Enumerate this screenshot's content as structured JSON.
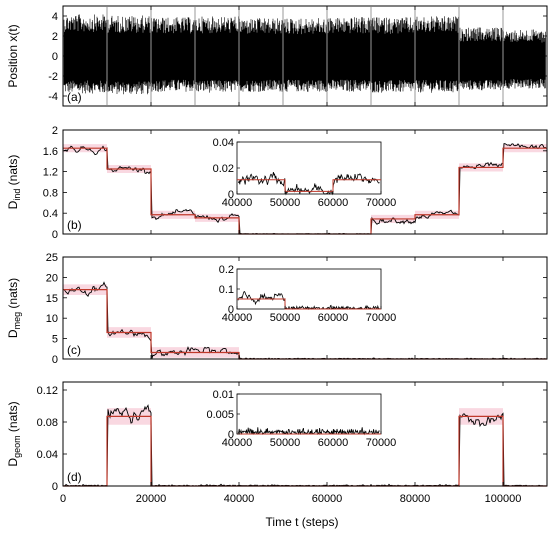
{
  "colors": {
    "trace": "#000000",
    "step_fit": "#c0392b",
    "band": "#f7c8d4",
    "divider": "#9a9a9a",
    "frame": "#000000"
  },
  "shared_x": {
    "label": "Time t (steps)",
    "range": [
      0,
      110000
    ],
    "ticks": [
      0,
      20000,
      40000,
      60000,
      80000,
      100000
    ],
    "tick_labels": [
      "0",
      "20000",
      "40000",
      "60000",
      "80000",
      "100000"
    ]
  },
  "chart_data": [
    {
      "type": "line",
      "panel": "(a)",
      "ylabel": "Position x(t)",
      "ylim": [
        -5,
        5
      ],
      "y_ticks": [
        -4,
        -2,
        0,
        2,
        4
      ],
      "y_tick_labels": [
        "-4",
        "-2",
        "0",
        "2",
        "4"
      ],
      "description_of_series": "dense stochastic trajectory; amplitude envelope per segment",
      "segment_boundaries": [
        10000,
        20000,
        30000,
        40000,
        50000,
        60000,
        70000,
        80000,
        90000,
        100000
      ],
      "envelope": [
        {
          "x": [
            0,
            10000
          ],
          "ymin": -4.2,
          "ymax": 4.6
        },
        {
          "x": [
            10000,
            20000
          ],
          "ymin": -4.3,
          "ymax": 4.5
        },
        {
          "x": [
            20000,
            30000
          ],
          "ymin": -4.0,
          "ymax": 4.3
        },
        {
          "x": [
            30000,
            40000
          ],
          "ymin": -4.1,
          "ymax": 4.4
        },
        {
          "x": [
            40000,
            50000
          ],
          "ymin": -4.0,
          "ymax": 4.2
        },
        {
          "x": [
            50000,
            60000
          ],
          "ymin": -4.0,
          "ymax": 4.2
        },
        {
          "x": [
            60000,
            70000
          ],
          "ymin": -4.0,
          "ymax": 4.3
        },
        {
          "x": [
            70000,
            80000
          ],
          "ymin": -4.1,
          "ymax": 4.3
        },
        {
          "x": [
            80000,
            90000
          ],
          "ymin": -4.1,
          "ymax": 4.4
        },
        {
          "x": [
            90000,
            100000
          ],
          "ymin": -3.8,
          "ymax": 3.2
        },
        {
          "x": [
            100000,
            110000
          ],
          "ymin": -3.6,
          "ymax": 3.0
        }
      ]
    },
    {
      "type": "line",
      "panel": "(b)",
      "ylabel_main": "D",
      "ylabel_sub": "ind",
      "ylabel_unit": " (nats)",
      "ylim": [
        0,
        2
      ],
      "y_ticks": [
        0,
        0.4,
        0.8,
        1.2,
        1.6,
        2
      ],
      "y_tick_labels": [
        "0",
        "0.4",
        "0.8",
        "1.2",
        "1.6",
        "2"
      ],
      "step_fit": [
        {
          "x": [
            0,
            10000
          ],
          "y": 1.65
        },
        {
          "x": [
            10000,
            20000
          ],
          "y": 1.25
        },
        {
          "x": [
            20000,
            30000
          ],
          "y": 0.37
        },
        {
          "x": [
            30000,
            40000
          ],
          "y": 0.31
        },
        {
          "x": [
            40000,
            70000
          ],
          "y": 0.0
        },
        {
          "x": [
            70000,
            80000
          ],
          "y": 0.29
        },
        {
          "x": [
            80000,
            90000
          ],
          "y": 0.37
        },
        {
          "x": [
            90000,
            100000
          ],
          "y": 1.28
        },
        {
          "x": [
            100000,
            110000
          ],
          "y": 1.65
        }
      ],
      "noise": 0.06,
      "inset": {
        "xlim": [
          40000,
          70000
        ],
        "ylim": [
          0,
          0.04
        ],
        "x_ticks": [
          40000,
          50000,
          60000,
          70000
        ],
        "x_tick_labels": [
          "40000",
          "50000",
          "60000",
          "70000"
        ],
        "y_ticks": [
          0,
          0.02,
          0.04
        ],
        "y_tick_labels": [
          "0",
          "0.02",
          "0.04"
        ],
        "step_fit": [
          {
            "x": [
              40000,
              50000
            ],
            "y": 0.011
          },
          {
            "x": [
              50000,
              60000
            ],
            "y": 0.002
          },
          {
            "x": [
              60000,
              70000
            ],
            "y": 0.011
          }
        ]
      }
    },
    {
      "type": "line",
      "panel": "(c)",
      "ylabel_main": "D",
      "ylabel_sub": "meg",
      "ylabel_unit": " (nats)",
      "ylim": [
        0,
        25
      ],
      "y_ticks": [
        0,
        5,
        10,
        15,
        20,
        25
      ],
      "y_tick_labels": [
        "0",
        "5",
        "10",
        "15",
        "20",
        "25"
      ],
      "step_fit": [
        {
          "x": [
            0,
            10000
          ],
          "y": 17
        },
        {
          "x": [
            10000,
            20000
          ],
          "y": 6.5
        },
        {
          "x": [
            20000,
            40000
          ],
          "y": 1.6
        },
        {
          "x": [
            40000,
            110000
          ],
          "y": 0
        }
      ],
      "noise": 1.0,
      "inset": {
        "xlim": [
          40000,
          70000
        ],
        "ylim": [
          0,
          0.2
        ],
        "x_ticks": [
          40000,
          50000,
          60000,
          70000
        ],
        "x_tick_labels": [
          "40000",
          "50000",
          "60000",
          "70000"
        ],
        "y_ticks": [
          0,
          0.1,
          0.2
        ],
        "y_tick_labels": [
          "0",
          "0.1",
          "0.2"
        ],
        "step_fit": [
          {
            "x": [
              40000,
              50000
            ],
            "y": 0.05
          },
          {
            "x": [
              50000,
              70000
            ],
            "y": 0.0
          }
        ]
      }
    },
    {
      "type": "line",
      "panel": "(d)",
      "ylabel_main": "D",
      "ylabel_sub": "geom",
      "ylabel_unit": " (nats)",
      "ylim": [
        0,
        0.13
      ],
      "y_ticks": [
        0,
        0.04,
        0.08,
        0.12
      ],
      "y_tick_labels": [
        "0",
        "0.04",
        "0.08",
        "0.12"
      ],
      "step_fit": [
        {
          "x": [
            0,
            10000
          ],
          "y": 0.0
        },
        {
          "x": [
            10000,
            20000
          ],
          "y": 0.087
        },
        {
          "x": [
            20000,
            90000
          ],
          "y": 0.0
        },
        {
          "x": [
            90000,
            100000
          ],
          "y": 0.087
        },
        {
          "x": [
            100000,
            110000
          ],
          "y": 0.0
        }
      ],
      "noise": 0.008,
      "inset": {
        "xlim": [
          40000,
          70000
        ],
        "ylim": [
          0,
          0.01
        ],
        "x_ticks": [
          40000,
          50000,
          60000,
          70000
        ],
        "x_tick_labels": [
          "40000",
          "50000",
          "60000",
          "70000"
        ],
        "y_ticks": [
          0,
          0.005,
          0.01
        ],
        "y_tick_labels": [
          "0",
          "0.005",
          "0.01"
        ],
        "step_fit": [
          {
            "x": [
              40000,
              70000
            ],
            "y": 0.0
          }
        ]
      }
    }
  ]
}
